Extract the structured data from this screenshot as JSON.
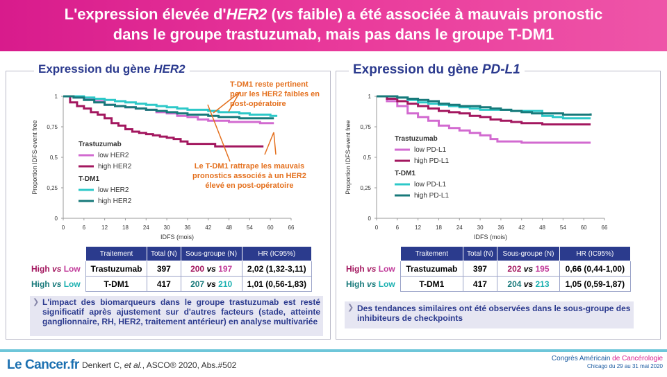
{
  "title": {
    "part1": "L'expression élevée d'",
    "gene": "HER2",
    "part2": " (",
    "vs": "vs",
    "part3": " faible) a été associée à mauvais pronostic",
    "line2": "dans le groupe trastuzumab, mais pas dans le groupe T-DM1"
  },
  "left_panel": {
    "title_prefix": "Expression du gène ",
    "title_gene": "HER2",
    "annotation_top": [
      "T-DM1 reste pertinent",
      "pour les HER2 faibles en",
      "post-opératoire"
    ],
    "annotation_bottom": [
      "Le T-DM1 rattrape les mauvais",
      "pronostics associés à un HER2",
      "élevé en post-opératoire"
    ],
    "table": {
      "headers": [
        "Traitement",
        "Total (N)",
        "Sous-groupe (N)",
        "HR (IC95%)"
      ],
      "rows": [
        {
          "high": "High",
          "vs": "vs",
          "low": "Low",
          "treatment": "Trastuzumab",
          "total": "397",
          "sg_a": "200",
          "sg_vs": "vs",
          "sg_b": "197",
          "hr": "2,02 (1,32-3,11)"
        },
        {
          "high": "High",
          "vs": "vs",
          "low": "Low",
          "treatment": "T-DM1",
          "total": "417",
          "sg_a": "207",
          "sg_vs": "vs",
          "sg_b": "210",
          "hr": "1,01 (0,56-1,83)"
        }
      ]
    },
    "note": "L'impact des biomarqueurs dans le groupe trastuzumab est resté significatif après ajustement sur d'autres facteurs (stade, atteinte ganglionnaire, RH, HER2, traitement antérieur) en analyse multivariée"
  },
  "right_panel": {
    "title_prefix": "Expression du gène ",
    "title_gene": "PD-L1",
    "table": {
      "headers": [
        "Traitement",
        "Total (N)",
        "Sous-groupe (N)",
        "HR (IC95%)"
      ],
      "rows": [
        {
          "high": "High",
          "vs": "vs",
          "low": "Low",
          "treatment": "Trastuzumab",
          "total": "397",
          "sg_a": "202",
          "sg_vs": "vs",
          "sg_b": "195",
          "hr": "0,66 (0,44-1,00)"
        },
        {
          "high": "High",
          "vs": "vs",
          "low": "Low",
          "treatment": "T-DM1",
          "total": "417",
          "sg_a": "204",
          "sg_vs": "vs",
          "sg_b": "213",
          "hr": "1,05 (0,59-1,87)"
        }
      ]
    },
    "note": "Des tendances similaires ont été observées dans le sous-groupe des inhibiteurs de checkpoints"
  },
  "footer": {
    "logo": "Le Cancer.fr",
    "ref_prefix": "Denkert C, ",
    "ref_etal": "et al.",
    "ref_suffix": ", ASCO® 2020, Abs.#502",
    "congress_a": "Congrès Américain ",
    "congress_b": "de Cancérologie",
    "congress_date": "Chicago du 29 au 31 mai 2020"
  },
  "chart_data": [
    {
      "type": "line",
      "xlabel": "IDFS (mois)",
      "ylabel": "Proportion IDFS-event free",
      "xlim": [
        0,
        66
      ],
      "ylim": [
        0,
        1
      ],
      "xticks": [
        "0",
        "6",
        "12",
        "18",
        "24",
        "30",
        "36",
        "42",
        "48",
        "54",
        "60",
        "66"
      ],
      "yticks": [
        "0",
        "0,25",
        "0,5",
        "0,75",
        "1"
      ],
      "legend_groups": [
        {
          "group": "Trastuzumab",
          "entries": [
            "low HER2",
            "high HER2"
          ]
        },
        {
          "group": "T-DM1",
          "entries": [
            "low HER2",
            "high HER2"
          ]
        }
      ],
      "series": [
        {
          "name": "low HER2",
          "group": "Trastuzumab",
          "color": "#d26ad0",
          "x": [
            0,
            3,
            6,
            9,
            12,
            15,
            18,
            21,
            24,
            27,
            30,
            33,
            36,
            39,
            42,
            45,
            48,
            51,
            54,
            57,
            60,
            61
          ],
          "y": [
            1,
            0.99,
            0.98,
            0.96,
            0.93,
            0.92,
            0.91,
            0.9,
            0.89,
            0.87,
            0.86,
            0.84,
            0.83,
            0.81,
            0.8,
            0.8,
            0.79,
            0.79,
            0.79,
            0.78,
            0.78,
            0.78
          ]
        },
        {
          "name": "high HER2",
          "group": "Trastuzumab",
          "color": "#a3175f",
          "x": [
            0,
            2,
            4,
            6,
            8,
            10,
            12,
            14,
            16,
            18,
            20,
            22,
            24,
            26,
            28,
            30,
            32,
            34,
            36,
            38,
            40,
            42,
            44,
            46,
            48,
            50,
            52,
            54,
            56,
            58
          ],
          "y": [
            1,
            0.95,
            0.92,
            0.9,
            0.87,
            0.85,
            0.82,
            0.78,
            0.76,
            0.73,
            0.71,
            0.7,
            0.69,
            0.68,
            0.67,
            0.66,
            0.65,
            0.63,
            0.61,
            0.61,
            0.61,
            0.61,
            0.59,
            0.59,
            0.59,
            0.59,
            0.59,
            0.59,
            0.59,
            0.59
          ]
        },
        {
          "name": "low HER2",
          "group": "T-DM1",
          "color": "#2cc8c8",
          "x": [
            0,
            3,
            6,
            9,
            12,
            15,
            18,
            21,
            24,
            27,
            30,
            33,
            36,
            39,
            42,
            45,
            48,
            51,
            54,
            57,
            60,
            62
          ],
          "y": [
            1,
            1,
            0.99,
            0.98,
            0.97,
            0.96,
            0.95,
            0.94,
            0.93,
            0.92,
            0.91,
            0.9,
            0.89,
            0.89,
            0.88,
            0.87,
            0.87,
            0.86,
            0.85,
            0.85,
            0.84,
            0.84
          ]
        },
        {
          "name": "high HER2",
          "group": "T-DM1",
          "color": "#17797a",
          "x": [
            0,
            3,
            6,
            9,
            12,
            15,
            18,
            21,
            24,
            27,
            30,
            33,
            36,
            39,
            42,
            45,
            48,
            51,
            54,
            57,
            60,
            61
          ],
          "y": [
            1,
            0.99,
            0.97,
            0.95,
            0.93,
            0.92,
            0.91,
            0.9,
            0.89,
            0.88,
            0.87,
            0.86,
            0.85,
            0.85,
            0.84,
            0.83,
            0.83,
            0.82,
            0.82,
            0.82,
            0.82,
            0.82
          ]
        }
      ]
    },
    {
      "type": "line",
      "xlabel": "IDFS (mois)",
      "ylabel": "Proportion IDFS-event free",
      "xlim": [
        0,
        66
      ],
      "ylim": [
        0,
        1
      ],
      "xticks": [
        "0",
        "6",
        "12",
        "18",
        "24",
        "30",
        "36",
        "42",
        "48",
        "54",
        "60",
        "66"
      ],
      "yticks": [
        "0",
        "0,25",
        "0,5",
        "0,75",
        "1"
      ],
      "legend_groups": [
        {
          "group": "Trastuzumab",
          "entries": [
            "low PD-L1",
            "high PD-L1"
          ]
        },
        {
          "group": "T-DM1",
          "entries": [
            "low PD-L1",
            "high PD-L1"
          ]
        }
      ],
      "series": [
        {
          "name": "low PD-L1",
          "group": "Trastuzumab",
          "color": "#d26ad0",
          "x": [
            0,
            3,
            6,
            9,
            12,
            15,
            18,
            21,
            24,
            27,
            30,
            33,
            35,
            37,
            40,
            42,
            45,
            48,
            51,
            54,
            57,
            60,
            62
          ],
          "y": [
            1,
            0.96,
            0.92,
            0.86,
            0.83,
            0.8,
            0.76,
            0.74,
            0.72,
            0.7,
            0.68,
            0.65,
            0.63,
            0.63,
            0.63,
            0.62,
            0.62,
            0.62,
            0.62,
            0.62,
            0.62,
            0.62,
            0.62
          ]
        },
        {
          "name": "high PD-L1",
          "group": "Trastuzumab",
          "color": "#a3175f",
          "x": [
            0,
            3,
            6,
            9,
            12,
            15,
            18,
            21,
            24,
            27,
            30,
            33,
            36,
            39,
            42,
            45,
            48,
            51,
            54,
            57,
            60,
            62
          ],
          "y": [
            1,
            0.98,
            0.96,
            0.94,
            0.92,
            0.9,
            0.88,
            0.87,
            0.86,
            0.84,
            0.83,
            0.81,
            0.8,
            0.79,
            0.78,
            0.78,
            0.77,
            0.77,
            0.77,
            0.77,
            0.77,
            0.77
          ]
        },
        {
          "name": "low PD-L1",
          "group": "T-DM1",
          "color": "#2cc8c8",
          "x": [
            0,
            3,
            6,
            9,
            12,
            15,
            18,
            21,
            24,
            27,
            30,
            33,
            36,
            39,
            42,
            45,
            48,
            51,
            54,
            57,
            60,
            62
          ],
          "y": [
            1,
            1,
            0.99,
            0.97,
            0.95,
            0.94,
            0.93,
            0.92,
            0.91,
            0.9,
            0.89,
            0.89,
            0.89,
            0.88,
            0.88,
            0.88,
            0.84,
            0.83,
            0.82,
            0.82,
            0.82,
            0.82
          ]
        },
        {
          "name": "high PD-L1",
          "group": "T-DM1",
          "color": "#17797a",
          "x": [
            0,
            3,
            6,
            9,
            12,
            15,
            18,
            21,
            24,
            27,
            30,
            33,
            36,
            39,
            42,
            45,
            48,
            51,
            54,
            57,
            60,
            62
          ],
          "y": [
            1,
            1,
            0.99,
            0.98,
            0.97,
            0.96,
            0.94,
            0.93,
            0.92,
            0.92,
            0.91,
            0.9,
            0.89,
            0.88,
            0.87,
            0.86,
            0.86,
            0.86,
            0.85,
            0.85,
            0.85,
            0.86
          ]
        }
      ]
    }
  ]
}
